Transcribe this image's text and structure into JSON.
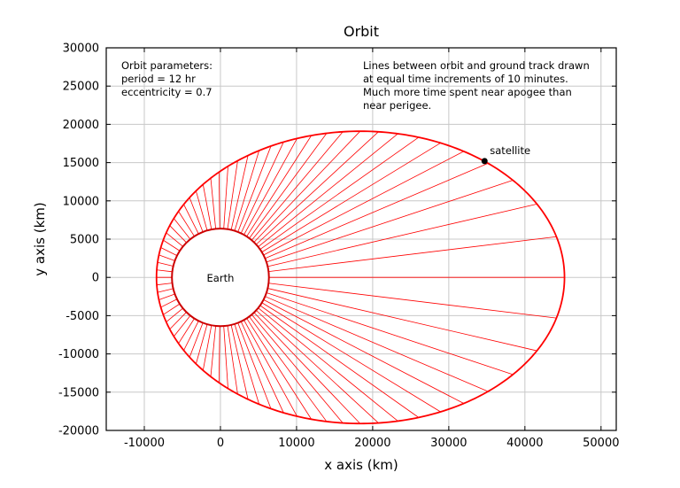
{
  "chart_data": {
    "type": "line",
    "title": "Orbit",
    "xlabel": "x axis (km)",
    "ylabel": "y axis (km)",
    "xlim": [
      -15000,
      52000
    ],
    "ylim": [
      -20000,
      30000
    ],
    "xticks": [
      -10000,
      0,
      10000,
      20000,
      30000,
      40000,
      50000
    ],
    "yticks": [
      -20000,
      -15000,
      -10000,
      -5000,
      0,
      5000,
      10000,
      15000,
      20000,
      25000,
      30000
    ],
    "grid": true,
    "orbit": {
      "period_hr": 12,
      "eccentricity": 0.7,
      "center_x": 18400,
      "semi_major_axis": 26800,
      "semi_minor_axis": 19100,
      "sample_interval_min": 10,
      "color": "#ff0000"
    },
    "earth": {
      "center_x": 0,
      "center_y": 0,
      "radius": 6371,
      "color": "#cc0000",
      "label": "Earth"
    },
    "satellite": {
      "x": 34700,
      "y": 15200,
      "label": "satellite",
      "color": "#000000"
    },
    "annotations": {
      "params": [
        "Orbit parameters:",
        "period = 12 hr",
        "eccentricity = 0.7"
      ],
      "description": [
        "Lines between orbit and ground track drawn",
        "at equal time increments of 10 minutes.",
        "Much more time spent near apogee than",
        "near perigee."
      ]
    }
  }
}
